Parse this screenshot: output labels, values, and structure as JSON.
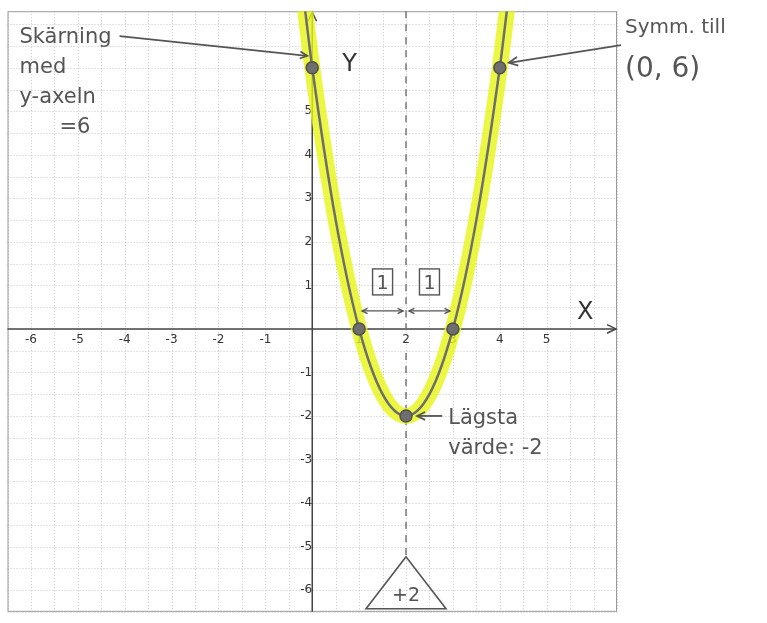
{
  "chart_data": {
    "type": "line",
    "xlim": [
      -6.5,
      6.5
    ],
    "ylim": [
      -6.5,
      7.3
    ],
    "xticks": [
      -6,
      -5,
      -4,
      -3,
      -2,
      -1,
      1,
      2,
      3,
      4,
      5
    ],
    "yticks": [
      -6,
      -5,
      -4,
      -3,
      -2,
      -1,
      1,
      2,
      3,
      4,
      5,
      6
    ],
    "grid": true,
    "x_label": "X",
    "y_label": "Y",
    "symmetry_line": 2,
    "series": [
      {
        "type": "line",
        "color": "#6e6e6e",
        "line_style": "solid",
        "x": [
          -0.15,
          0,
          0.5,
          1,
          1.5,
          2,
          2.5,
          3,
          3.5,
          4,
          4.15
        ],
        "values": [
          7.3,
          6,
          2.5,
          0,
          -1.5,
          -2,
          -1.5,
          0,
          2.5,
          6,
          7.3
        ]
      },
      {
        "type": "scatter",
        "color": "#6e6e6e",
        "marker": "circle",
        "x": [
          0,
          1,
          2,
          3,
          4
        ],
        "values": [
          6,
          0,
          -2,
          0,
          6
        ]
      }
    ],
    "annotations": [
      {
        "lines": [
          "Skärning",
          "med",
          "y-axeln",
          "=6"
        ],
        "target": [
          0,
          6
        ]
      },
      {
        "lines": [
          "Symm. till",
          "(0, 6)"
        ],
        "target": [
          4,
          6
        ]
      },
      {
        "lines": [
          "Lägsta",
          "värde: -2"
        ],
        "target": [
          2,
          -2
        ]
      },
      {
        "text": "1",
        "span": [
          1,
          2
        ]
      },
      {
        "text": "1",
        "span": [
          2,
          3
        ]
      },
      {
        "text": "+2",
        "x": 2
      }
    ]
  }
}
